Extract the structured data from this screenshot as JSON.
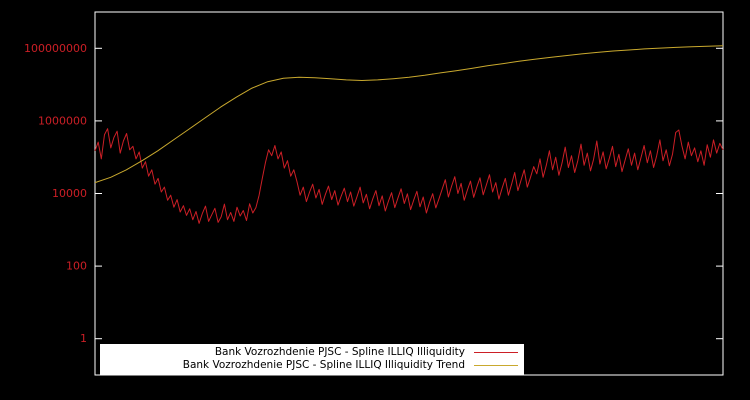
{
  "colors": {
    "background": "#000000",
    "plot_border": "#ffffff",
    "axis_label": "#cc1f26",
    "series_red": "#cc1f26",
    "series_yellow": "#c9a92e",
    "legend_background": "#ffffff",
    "legend_text": "#000000"
  },
  "chart_data": {
    "type": "line",
    "title": "",
    "xlabel": "",
    "ylabel": "",
    "y_scale": "log",
    "ylim": [
      0.1,
      1000000000
    ],
    "yticks": [
      1,
      100,
      10000,
      1000000,
      100000000
    ],
    "ytick_labels": [
      "1",
      "100",
      "10000",
      "1000000",
      "100000000"
    ],
    "grid": "off",
    "legend_position": "bottom-center-inside",
    "series": [
      {
        "name": "Bank Vozrozhdenie PJSC - Spline ILLIQ Illiquidity",
        "color": "#cc1f26",
        "values": [
          150000,
          260000,
          90000,
          420000,
          610000,
          180000,
          350000,
          520000,
          130000,
          280000,
          450000,
          160000,
          200000,
          90000,
          140000,
          50000,
          75000,
          30000,
          45000,
          18000,
          26000,
          11000,
          15000,
          6500,
          9000,
          4200,
          6800,
          3100,
          4600,
          2500,
          3800,
          1900,
          3200,
          1500,
          2800,
          4500,
          1700,
          2600,
          3900,
          1600,
          2300,
          5100,
          1900,
          3000,
          1700,
          4200,
          2400,
          3400,
          1800,
          5200,
          2900,
          4100,
          9000,
          26000,
          70000,
          160000,
          110000,
          210000,
          90000,
          140000,
          50000,
          80000,
          30000,
          45000,
          21000,
          9000,
          15000,
          6000,
          11000,
          18000,
          7500,
          13000,
          5000,
          9500,
          16000,
          6800,
          12000,
          4800,
          8500,
          14000,
          6000,
          11000,
          4500,
          8000,
          15000,
          5500,
          9500,
          3800,
          7000,
          12000,
          4600,
          8600,
          3300,
          6200,
          10500,
          4100,
          7600,
          13500,
          5300,
          9800,
          3600,
          6600,
          11500,
          4300,
          8000,
          2900,
          5600,
          9900,
          4000,
          7200,
          13000,
          24000,
          8000,
          16000,
          29000,
          10000,
          19000,
          6500,
          12500,
          22000,
          7800,
          15000,
          27000,
          9200,
          17000,
          33000,
          11000,
          20000,
          7000,
          14000,
          26000,
          9000,
          18000,
          38000,
          12000,
          23000,
          45000,
          15000,
          28000,
          55000,
          35000,
          90000,
          28000,
          60000,
          150000,
          45000,
          100000,
          32000,
          70000,
          190000,
          52000,
          110000,
          38000,
          80000,
          230000,
          60000,
          130000,
          42000,
          88000,
          280000,
          65000,
          140000,
          48000,
          95000,
          200000,
          55000,
          120000,
          40000,
          85000,
          170000,
          60000,
          130000,
          45000,
          95000,
          210000,
          70000,
          150000,
          52000,
          110000,
          300000,
          80000,
          160000,
          58000,
          120000,
          480000,
          560000,
          200000,
          90000,
          260000,
          110000,
          180000,
          75000,
          150000,
          60000,
          220000,
          100000,
          300000,
          130000,
          240000,
          160000
        ]
      },
      {
        "name": "Bank Vozrozhdenie PJSC - Spline ILLIQ Illiquidity Trend",
        "color": "#c9a92e",
        "values": [
          20000,
          28000,
          45000,
          80000,
          150000,
          300000,
          600000,
          1200000,
          2400000,
          4500000,
          8000000,
          12000000,
          15000000,
          16000000,
          15500000,
          14500000,
          13500000,
          13000000,
          13500000,
          14500000,
          16000000,
          18000000,
          21000000,
          24000000,
          28000000,
          33000000,
          38000000,
          44000000,
          50000000,
          56000000,
          63000000,
          70000000,
          77000000,
          84000000,
          90000000,
          96000000,
          101000000,
          106000000,
          110000000,
          114000000,
          118000000
        ]
      }
    ]
  },
  "legend": {
    "entries": [
      {
        "label": "Bank Vozrozhdenie PJSC - Spline ILLIQ Illiquidity"
      },
      {
        "label": "Bank Vozrozhdenie PJSC - Spline ILLIQ Illiquidity Trend"
      }
    ]
  }
}
